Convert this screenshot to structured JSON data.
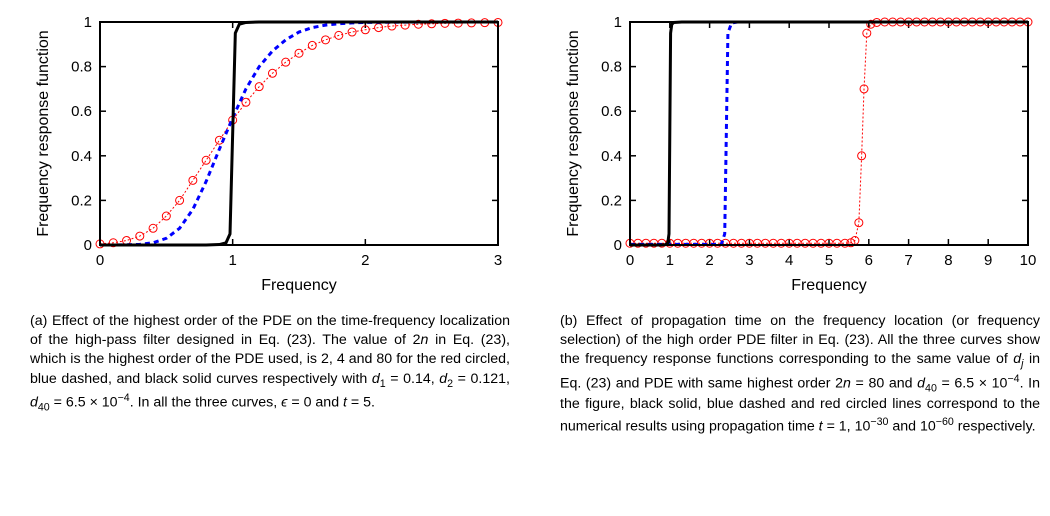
{
  "panelA": {
    "type": "line",
    "xlabel": "Frequency",
    "ylabel": "Frequency response function",
    "xlim": [
      0,
      3
    ],
    "ylim": [
      0,
      1
    ],
    "xticks": [
      0,
      1,
      2,
      3
    ],
    "yticks": [
      0,
      0.2,
      0.4,
      0.6,
      0.8,
      1
    ],
    "background_color": "#ffffff",
    "axis_color": "#000000",
    "series": [
      {
        "name": "red-circled",
        "color": "#ff0000",
        "style": "line-markers",
        "marker": "circle",
        "marker_size": 4,
        "line_width": 1,
        "dash": "2,2",
        "data": [
          [
            0.0,
            0.005
          ],
          [
            0.1,
            0.01
          ],
          [
            0.2,
            0.02
          ],
          [
            0.3,
            0.04
          ],
          [
            0.4,
            0.075
          ],
          [
            0.5,
            0.13
          ],
          [
            0.6,
            0.2
          ],
          [
            0.7,
            0.29
          ],
          [
            0.8,
            0.38
          ],
          [
            0.9,
            0.47
          ],
          [
            1.0,
            0.56
          ],
          [
            1.1,
            0.64
          ],
          [
            1.2,
            0.71
          ],
          [
            1.3,
            0.77
          ],
          [
            1.4,
            0.82
          ],
          [
            1.5,
            0.86
          ],
          [
            1.6,
            0.895
          ],
          [
            1.7,
            0.92
          ],
          [
            1.8,
            0.94
          ],
          [
            1.9,
            0.955
          ],
          [
            2.0,
            0.965
          ],
          [
            2.1,
            0.975
          ],
          [
            2.2,
            0.982
          ],
          [
            2.3,
            0.986
          ],
          [
            2.4,
            0.99
          ],
          [
            2.5,
            0.992
          ],
          [
            2.6,
            0.994
          ],
          [
            2.7,
            0.995
          ],
          [
            2.8,
            0.996
          ],
          [
            2.9,
            0.997
          ],
          [
            3.0,
            0.998
          ]
        ]
      },
      {
        "name": "blue-dashed",
        "color": "#0000ff",
        "style": "dashed",
        "line_width": 3,
        "dash": "5,4",
        "data": [
          [
            0.0,
            0.0
          ],
          [
            0.1,
            0.0
          ],
          [
            0.2,
            0.001
          ],
          [
            0.3,
            0.003
          ],
          [
            0.4,
            0.01
          ],
          [
            0.5,
            0.03
          ],
          [
            0.6,
            0.075
          ],
          [
            0.7,
            0.16
          ],
          [
            0.8,
            0.285
          ],
          [
            0.9,
            0.43
          ],
          [
            1.0,
            0.57
          ],
          [
            1.1,
            0.7
          ],
          [
            1.2,
            0.8
          ],
          [
            1.3,
            0.87
          ],
          [
            1.4,
            0.92
          ],
          [
            1.5,
            0.955
          ],
          [
            1.6,
            0.975
          ],
          [
            1.7,
            0.986
          ],
          [
            1.8,
            0.992
          ],
          [
            1.9,
            0.996
          ],
          [
            2.0,
            0.998
          ],
          [
            2.2,
            0.999
          ],
          [
            2.5,
            1.0
          ],
          [
            3.0,
            1.0
          ]
        ]
      },
      {
        "name": "black-solid",
        "color": "#000000",
        "style": "solid",
        "line_width": 3,
        "data": [
          [
            0.0,
            0.0
          ],
          [
            0.5,
            0.0
          ],
          [
            0.8,
            0.0
          ],
          [
            0.9,
            0.002
          ],
          [
            0.95,
            0.01
          ],
          [
            0.98,
            0.05
          ],
          [
            1.0,
            0.5
          ],
          [
            1.02,
            0.95
          ],
          [
            1.05,
            0.99
          ],
          [
            1.1,
            0.998
          ],
          [
            1.2,
            1.0
          ],
          [
            1.5,
            1.0
          ],
          [
            2.0,
            1.0
          ],
          [
            3.0,
            1.0
          ]
        ]
      }
    ],
    "caption_html": "(a) Effect of the highest order of the PDE on the time-frequency localization of the high-pass filter designed in Eq. (23). The value of 2<i>n</i> in Eq. (23), which is the highest order of the PDE used, is 2, 4 and 80 for the red circled, blue dashed, and black solid curves respectively with <i>d</i><sub>1</sub> = 0.14, <i>d</i><sub>2</sub> = 0.121, <i>d</i><sub>40</sub> = 6.5 × 10<sup>−4</sup>. In all the three curves, <i>ϵ</i> = 0 and <i>t</i> = 5."
  },
  "panelB": {
    "type": "line",
    "xlabel": "Frequency",
    "ylabel": "Frequency response function",
    "xlim": [
      0,
      10
    ],
    "ylim": [
      0,
      1
    ],
    "xticks": [
      0,
      1,
      2,
      3,
      4,
      5,
      6,
      7,
      8,
      9,
      10
    ],
    "yticks": [
      0,
      0.2,
      0.4,
      0.6,
      0.8,
      1
    ],
    "background_color": "#ffffff",
    "axis_color": "#000000",
    "series": [
      {
        "name": "red-circled",
        "color": "#ff0000",
        "style": "line-markers",
        "marker": "circle",
        "marker_size": 4,
        "line_width": 1,
        "dash": "2,2",
        "data": [
          [
            0.0,
            0.008
          ],
          [
            0.2,
            0.008
          ],
          [
            0.4,
            0.008
          ],
          [
            0.6,
            0.008
          ],
          [
            0.8,
            0.008
          ],
          [
            1.0,
            0.008
          ],
          [
            1.2,
            0.008
          ],
          [
            1.4,
            0.008
          ],
          [
            1.6,
            0.008
          ],
          [
            1.8,
            0.008
          ],
          [
            2.0,
            0.008
          ],
          [
            2.2,
            0.008
          ],
          [
            2.4,
            0.008
          ],
          [
            2.6,
            0.008
          ],
          [
            2.8,
            0.008
          ],
          [
            3.0,
            0.008
          ],
          [
            3.2,
            0.008
          ],
          [
            3.4,
            0.008
          ],
          [
            3.6,
            0.008
          ],
          [
            3.8,
            0.008
          ],
          [
            4.0,
            0.008
          ],
          [
            4.2,
            0.008
          ],
          [
            4.4,
            0.008
          ],
          [
            4.6,
            0.008
          ],
          [
            4.8,
            0.008
          ],
          [
            5.0,
            0.008
          ],
          [
            5.2,
            0.008
          ],
          [
            5.4,
            0.008
          ],
          [
            5.55,
            0.01
          ],
          [
            5.65,
            0.02
          ],
          [
            5.75,
            0.1
          ],
          [
            5.82,
            0.4
          ],
          [
            5.88,
            0.7
          ],
          [
            5.95,
            0.95
          ],
          [
            6.05,
            0.99
          ],
          [
            6.2,
            0.998
          ],
          [
            6.4,
            1.0
          ],
          [
            6.6,
            1.0
          ],
          [
            6.8,
            1.0
          ],
          [
            7.0,
            1.0
          ],
          [
            7.2,
            1.0
          ],
          [
            7.4,
            1.0
          ],
          [
            7.6,
            1.0
          ],
          [
            7.8,
            1.0
          ],
          [
            8.0,
            1.0
          ],
          [
            8.2,
            1.0
          ],
          [
            8.4,
            1.0
          ],
          [
            8.6,
            1.0
          ],
          [
            8.8,
            1.0
          ],
          [
            9.0,
            1.0
          ],
          [
            9.2,
            1.0
          ],
          [
            9.4,
            1.0
          ],
          [
            9.6,
            1.0
          ],
          [
            9.8,
            1.0
          ],
          [
            10.0,
            1.0
          ]
        ]
      },
      {
        "name": "blue-dashed",
        "color": "#0000ff",
        "style": "dashed",
        "line_width": 3,
        "dash": "5,4",
        "data": [
          [
            0.0,
            0.003
          ],
          [
            1.0,
            0.003
          ],
          [
            1.5,
            0.003
          ],
          [
            2.0,
            0.003
          ],
          [
            2.2,
            0.003
          ],
          [
            2.3,
            0.005
          ],
          [
            2.38,
            0.05
          ],
          [
            2.42,
            0.5
          ],
          [
            2.46,
            0.95
          ],
          [
            2.55,
            0.995
          ],
          [
            2.7,
            1.0
          ],
          [
            3.0,
            1.0
          ],
          [
            4.0,
            1.0
          ],
          [
            6.0,
            1.0
          ],
          [
            8.0,
            1.0
          ],
          [
            10.0,
            1.0
          ]
        ]
      },
      {
        "name": "black-solid",
        "color": "#000000",
        "style": "solid",
        "line_width": 3,
        "data": [
          [
            0.0,
            0.0
          ],
          [
            0.5,
            0.0
          ],
          [
            0.8,
            0.0
          ],
          [
            0.9,
            0.002
          ],
          [
            0.95,
            0.01
          ],
          [
            0.98,
            0.05
          ],
          [
            1.0,
            0.5
          ],
          [
            1.02,
            0.95
          ],
          [
            1.05,
            0.99
          ],
          [
            1.1,
            0.998
          ],
          [
            1.3,
            1.0
          ],
          [
            2.0,
            1.0
          ],
          [
            4.0,
            1.0
          ],
          [
            6.0,
            1.0
          ],
          [
            8.0,
            1.0
          ],
          [
            10.0,
            1.0
          ]
        ]
      }
    ],
    "caption_html": "(b) Effect of propagation time on the frequency location (or frequency selection) of the high order PDE filter in Eq. (23). All the three curves show the frequency response functions corresponding to the same value of <i>d<sub>j</sub></i> in Eq. (23) and PDE with same highest order 2<i>n</i> = 80 and <i>d</i><sub>40</sub> = 6.5 × 10<sup>−4</sup>. In the figure, black solid, blue dashed and red circled lines correspond to the numerical results using propagation time <i>t</i> = 1, 10<sup>−30</sup> and 10<sup>−60</sup> respectively."
  }
}
